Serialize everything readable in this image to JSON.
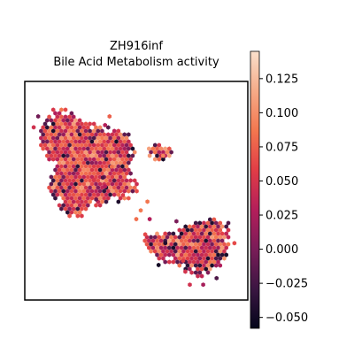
{
  "chart_data": {
    "type": "scatter",
    "title": "ZH916inf",
    "subtitle": "Bile Acid Metabolism activity",
    "xlabel": "",
    "ylabel": "",
    "grid": false,
    "legend": "none",
    "marker": "hexagon",
    "colormap": [
      "#03051a",
      "#3b1642",
      "#7a1c58",
      "#b41e5a",
      "#e13d46",
      "#f3774f",
      "#f6ab88",
      "#fae0cc"
    ],
    "colorbar": {
      "range": [
        -0.058,
        0.145
      ],
      "ticks": [
        -0.05,
        -0.025,
        0.0,
        0.025,
        0.05,
        0.075,
        0.1,
        0.125
      ],
      "tick_labels": [
        "−0.050",
        "−0.025",
        "0.000",
        "0.025",
        "0.050",
        "0.075",
        "0.100",
        "0.125"
      ]
    },
    "regions": [
      {
        "name": "",
        "polygon": [
          [
            8,
            81
          ],
          [
            12,
            87
          ],
          [
            19,
            88
          ],
          [
            25,
            82
          ],
          [
            34,
            80
          ],
          [
            42,
            78
          ],
          [
            48,
            75
          ],
          [
            50,
            67
          ],
          [
            47,
            60
          ],
          [
            52,
            52
          ],
          [
            48,
            47
          ],
          [
            40,
            44
          ],
          [
            30,
            42
          ],
          [
            26,
            38
          ],
          [
            20,
            38
          ],
          [
            14,
            44
          ],
          [
            10,
            53
          ],
          [
            13,
            60
          ],
          [
            8,
            67
          ],
          [
            6,
            74
          ]
        ]
      },
      {
        "name": "",
        "polygon": [
          [
            55,
            69
          ],
          [
            60,
            72
          ],
          [
            67,
            68
          ],
          [
            63,
            64
          ],
          [
            57,
            64
          ]
        ]
      },
      {
        "name": "",
        "polygon": [
          [
            57,
            33
          ],
          [
            62,
            30
          ],
          [
            70,
            33
          ],
          [
            78,
            36
          ],
          [
            86,
            38
          ],
          [
            92,
            35
          ],
          [
            92,
            27
          ],
          [
            90,
            17
          ],
          [
            86,
            14
          ],
          [
            82,
            10
          ],
          [
            77,
            11
          ],
          [
            70,
            15
          ],
          [
            62,
            17
          ],
          [
            56,
            22
          ],
          [
            53,
            28
          ]
        ]
      }
    ],
    "strays": [
      [
        6,
        84
      ],
      [
        4,
        79
      ],
      [
        31,
        55
      ],
      [
        36,
        52
      ],
      [
        35,
        56
      ],
      [
        32,
        46
      ],
      [
        36,
        80
      ],
      [
        38,
        84
      ],
      [
        43,
        59
      ],
      [
        52,
        41
      ],
      [
        50,
        37
      ],
      [
        44,
        48
      ],
      [
        39,
        61
      ],
      [
        56,
        66
      ],
      [
        62,
        66
      ],
      [
        54,
        30
      ],
      [
        56,
        37
      ],
      [
        63,
        26
      ],
      [
        71,
        18
      ],
      [
        72,
        13
      ],
      [
        74,
        7
      ],
      [
        80,
        7
      ],
      [
        86,
        10
      ],
      [
        94,
        26
      ],
      [
        60,
        16
      ],
      [
        68,
        36
      ],
      [
        55,
        45
      ]
    ],
    "values_range": [
      -0.058,
      0.145
    ]
  }
}
